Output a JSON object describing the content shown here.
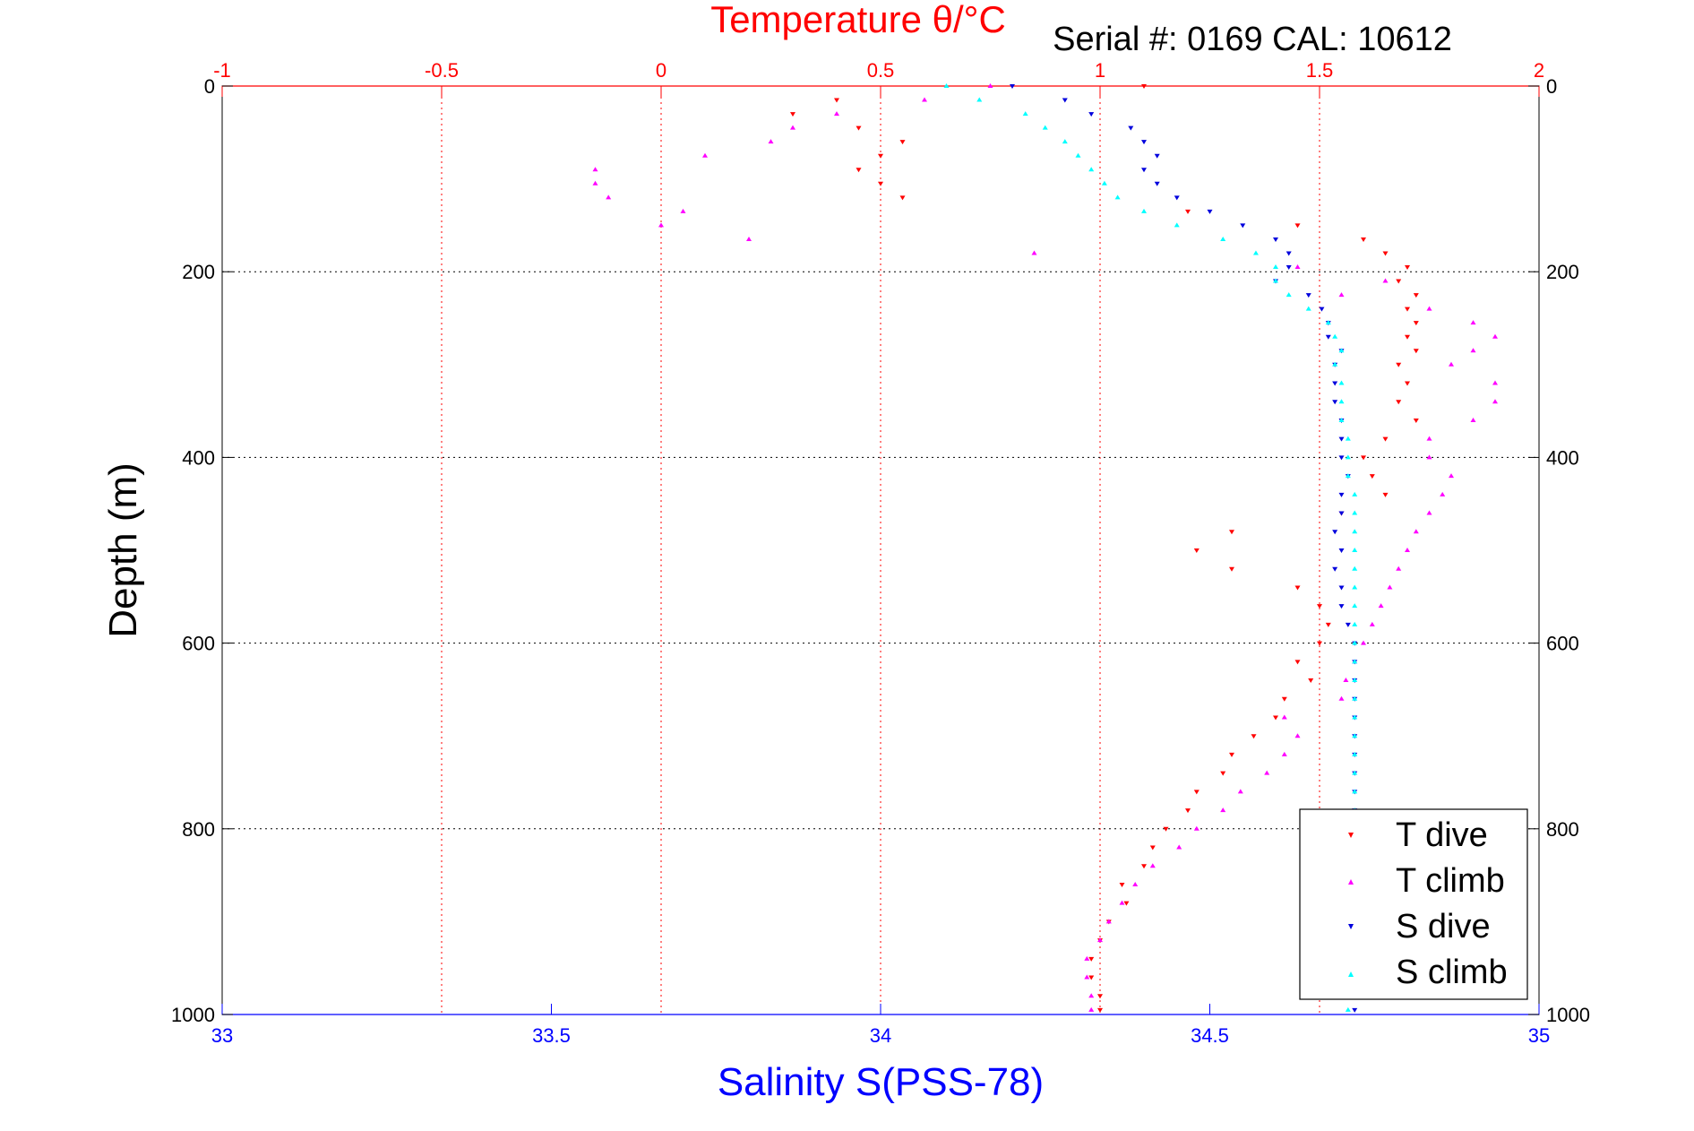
{
  "chart_data": {
    "type": "scatter",
    "top_title": "Temperature θ/°C",
    "serial_text": "Serial #: 0169 CAL: 10612",
    "xlabel_bottom": "Salinity S(PSS-78)",
    "ylabel": "Depth (m)",
    "x_top": {
      "range": [
        -1,
        2
      ],
      "ticks": [
        -1,
        -0.5,
        0,
        0.5,
        1,
        1.5,
        2
      ],
      "tick_labels": [
        "-1",
        "-0.5",
        "0",
        "0.5",
        "1",
        "1.5",
        "2"
      ]
    },
    "x_bottom": {
      "range": [
        33,
        35
      ],
      "ticks": [
        33,
        33.5,
        34,
        34.5,
        35
      ],
      "tick_labels": [
        "33",
        "33.5",
        "34",
        "34.5",
        "35"
      ]
    },
    "y": {
      "range": [
        0,
        1000
      ],
      "reversed": true,
      "ticks": [
        0,
        200,
        400,
        600,
        800,
        1000
      ],
      "tick_labels": [
        "0",
        "200",
        "400",
        "600",
        "800",
        "1000"
      ]
    },
    "grid": true,
    "legend": {
      "position": "bottom-right",
      "entries": [
        "T dive",
        "T climb",
        "S dive",
        "S climb"
      ]
    },
    "colors": {
      "T dive": "#ff0000",
      "T climb": "#ff00ff",
      "S dive": "#0000dd",
      "S climb": "#00ffff",
      "top_axis": "#ff0000",
      "bottom_axis": "#0000ff"
    },
    "series": [
      {
        "name": "T dive",
        "axis": "temperature",
        "marker": "triangle-down",
        "depth": [
          0,
          15,
          30,
          45,
          60,
          75,
          90,
          105,
          120,
          135,
          150,
          165,
          180,
          195,
          210,
          225,
          240,
          255,
          270,
          285,
          300,
          320,
          340,
          360,
          380,
          400,
          420,
          440,
          460,
          480,
          500,
          520,
          540,
          560,
          580,
          600,
          620,
          640,
          660,
          680,
          700,
          720,
          740,
          760,
          780,
          800,
          820,
          840,
          860,
          880,
          900,
          920,
          940,
          960,
          980,
          995
        ],
        "values": [
          1.1,
          0.4,
          0.3,
          0.45,
          0.55,
          0.5,
          0.45,
          0.5,
          0.55,
          1.2,
          1.45,
          1.6,
          1.65,
          1.7,
          1.68,
          1.72,
          1.7,
          1.72,
          1.7,
          1.72,
          1.68,
          1.7,
          1.68,
          1.72,
          1.65,
          1.6,
          1.62,
          1.65,
          1.55,
          1.3,
          1.22,
          1.3,
          1.45,
          1.5,
          1.52,
          1.5,
          1.45,
          1.48,
          1.42,
          1.4,
          1.35,
          1.3,
          1.28,
          1.22,
          1.2,
          1.15,
          1.12,
          1.1,
          1.05,
          1.06,
          1.02,
          1.0,
          0.98,
          0.98,
          1.0,
          1.0
        ]
      },
      {
        "name": "T climb",
        "axis": "temperature",
        "marker": "triangle-up",
        "depth": [
          0,
          15,
          30,
          45,
          60,
          75,
          90,
          105,
          120,
          135,
          150,
          165,
          180,
          195,
          210,
          225,
          240,
          255,
          270,
          285,
          300,
          320,
          340,
          360,
          380,
          400,
          420,
          440,
          460,
          480,
          500,
          520,
          540,
          560,
          580,
          600,
          620,
          640,
          660,
          680,
          700,
          720,
          740,
          760,
          780,
          800,
          820,
          840,
          860,
          880,
          900,
          920,
          940,
          960,
          980,
          995
        ],
        "values": [
          0.75,
          0.6,
          0.4,
          0.3,
          0.25,
          0.1,
          -0.15,
          -0.15,
          -0.12,
          0.05,
          0.0,
          0.2,
          0.85,
          1.45,
          1.65,
          1.55,
          1.75,
          1.85,
          1.9,
          1.85,
          1.8,
          1.9,
          1.9,
          1.85,
          1.75,
          1.75,
          1.8,
          1.78,
          1.75,
          1.72,
          1.7,
          1.68,
          1.66,
          1.64,
          1.62,
          1.6,
          1.58,
          1.56,
          1.55,
          1.42,
          1.45,
          1.42,
          1.38,
          1.32,
          1.28,
          1.22,
          1.18,
          1.12,
          1.08,
          1.05,
          1.02,
          1.0,
          0.97,
          0.97,
          0.98,
          0.98
        ]
      },
      {
        "name": "S dive",
        "axis": "salinity",
        "marker": "triangle-down",
        "depth": [
          0,
          15,
          30,
          45,
          60,
          75,
          90,
          105,
          120,
          135,
          150,
          165,
          180,
          195,
          210,
          225,
          240,
          255,
          270,
          285,
          300,
          320,
          340,
          360,
          380,
          400,
          420,
          440,
          460,
          480,
          500,
          520,
          540,
          560,
          580,
          600,
          620,
          640,
          660,
          680,
          700,
          720,
          740,
          760,
          780,
          800,
          820,
          840,
          860,
          880,
          900,
          920,
          940,
          960,
          980,
          995
        ],
        "values": [
          34.2,
          34.28,
          34.32,
          34.38,
          34.4,
          34.42,
          34.4,
          34.42,
          34.45,
          34.5,
          34.55,
          34.6,
          34.62,
          34.62,
          34.6,
          34.65,
          34.67,
          34.68,
          34.68,
          34.7,
          34.69,
          34.69,
          34.69,
          34.7,
          34.7,
          34.7,
          34.71,
          34.7,
          34.7,
          34.69,
          34.7,
          34.69,
          34.7,
          34.7,
          34.71,
          34.72,
          34.72,
          34.72,
          34.72,
          34.72,
          34.72,
          34.72,
          34.72,
          34.72,
          34.72,
          34.72,
          34.72,
          34.72,
          34.72,
          34.72,
          34.72,
          34.72,
          34.72,
          34.72,
          34.72,
          34.72
        ]
      },
      {
        "name": "S climb",
        "axis": "salinity",
        "marker": "triangle-up",
        "depth": [
          0,
          15,
          30,
          45,
          60,
          75,
          90,
          105,
          120,
          135,
          150,
          165,
          180,
          195,
          210,
          225,
          240,
          255,
          270,
          285,
          300,
          320,
          340,
          360,
          380,
          400,
          420,
          440,
          460,
          480,
          500,
          520,
          540,
          560,
          580,
          600,
          620,
          640,
          660,
          680,
          700,
          720,
          740,
          760,
          780,
          800,
          820,
          840,
          860,
          880,
          900,
          920,
          940,
          960,
          980,
          995
        ],
        "values": [
          34.1,
          34.15,
          34.22,
          34.25,
          34.28,
          34.3,
          34.32,
          34.34,
          34.36,
          34.4,
          34.45,
          34.52,
          34.57,
          34.6,
          34.6,
          34.62,
          34.65,
          34.68,
          34.69,
          34.7,
          34.69,
          34.7,
          34.7,
          34.7,
          34.71,
          34.71,
          34.71,
          34.72,
          34.72,
          34.72,
          34.72,
          34.72,
          34.72,
          34.72,
          34.72,
          34.72,
          34.72,
          34.72,
          34.72,
          34.72,
          34.72,
          34.72,
          34.72,
          34.72,
          34.72,
          34.72,
          34.72,
          34.72,
          34.72,
          34.72,
          34.72,
          34.72,
          34.72,
          34.72,
          34.72,
          34.71
        ]
      }
    ]
  }
}
